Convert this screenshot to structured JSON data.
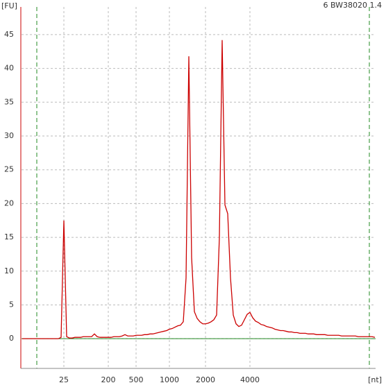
{
  "chart_data": {
    "type": "line",
    "title": "6 BW38020 1.4",
    "y_label": "[FU]",
    "x_label": "[nt]",
    "categories": [
      null,
      null,
      null,
      null,
      null,
      null,
      null,
      null,
      null,
      null,
      null,
      null,
      null,
      null,
      null,
      "25",
      null,
      null,
      null,
      null,
      null,
      null,
      null,
      null,
      null,
      null,
      null,
      null,
      null,
      null,
      null,
      "200",
      null,
      null,
      null,
      null,
      null,
      null,
      null,
      null,
      null,
      "500",
      null,
      null,
      null,
      null,
      null,
      null,
      null,
      null,
      null,
      null,
      null,
      "1000",
      null,
      null,
      null,
      null,
      null,
      null,
      null,
      null,
      null,
      null,
      null,
      null,
      "2000",
      null,
      null,
      null,
      null,
      null,
      null,
      null,
      null,
      null,
      null,
      null,
      null,
      null,
      null,
      null,
      "4000",
      null,
      null,
      null,
      null,
      null,
      null,
      null,
      null,
      null,
      null,
      null,
      null,
      null,
      null,
      null,
      null,
      null,
      null,
      null,
      null,
      null,
      null,
      null,
      null,
      null,
      null,
      null,
      null,
      null,
      null,
      null,
      null,
      null,
      null,
      null,
      null,
      null,
      null,
      null,
      null,
      null,
      null,
      null,
      null,
      null
    ],
    "values": [
      0,
      0,
      0,
      0,
      0,
      0,
      0,
      0,
      0,
      0,
      0,
      0,
      0,
      0,
      0.2,
      17.5,
      0.3,
      0.1,
      0.1,
      0.2,
      0.2,
      0.2,
      0.3,
      0.3,
      0.3,
      0.3,
      0.7,
      0.3,
      0.2,
      0.2,
      0.2,
      0.2,
      0.2,
      0.3,
      0.3,
      0.3,
      0.4,
      0.6,
      0.4,
      0.4,
      0.4,
      0.5,
      0.5,
      0.5,
      0.6,
      0.6,
      0.7,
      0.7,
      0.8,
      0.9,
      1.0,
      1.1,
      1.2,
      1.4,
      1.5,
      1.7,
      1.9,
      2.0,
      2.5,
      9,
      41.8,
      12,
      4,
      3,
      2.5,
      2.2,
      2.2,
      2.3,
      2.5,
      2.8,
      3.5,
      15,
      44.2,
      19.8,
      18.5,
      9,
      3.5,
      2.2,
      1.8,
      2.0,
      2.8,
      3.6,
      3.9,
      3.1,
      2.6,
      2.4,
      2.1,
      2.0,
      1.8,
      1.7,
      1.6,
      1.4,
      1.3,
      1.2,
      1.2,
      1.1,
      1.0,
      1.0,
      0.9,
      0.9,
      0.8,
      0.8,
      0.8,
      0.7,
      0.7,
      0.7,
      0.6,
      0.6,
      0.6,
      0.6,
      0.5,
      0.5,
      0.5,
      0.5,
      0.5,
      0.4,
      0.4,
      0.4,
      0.4,
      0.4,
      0.4,
      0.3,
      0.3,
      0.3,
      0.3,
      0.3,
      0.3,
      0.2
    ],
    "color": "#cc0000",
    "ylim": [
      -4.4,
      49.1
    ],
    "yticks": [
      0,
      5,
      10,
      15,
      20,
      25,
      30,
      35,
      40,
      45
    ],
    "grid": true
  }
}
